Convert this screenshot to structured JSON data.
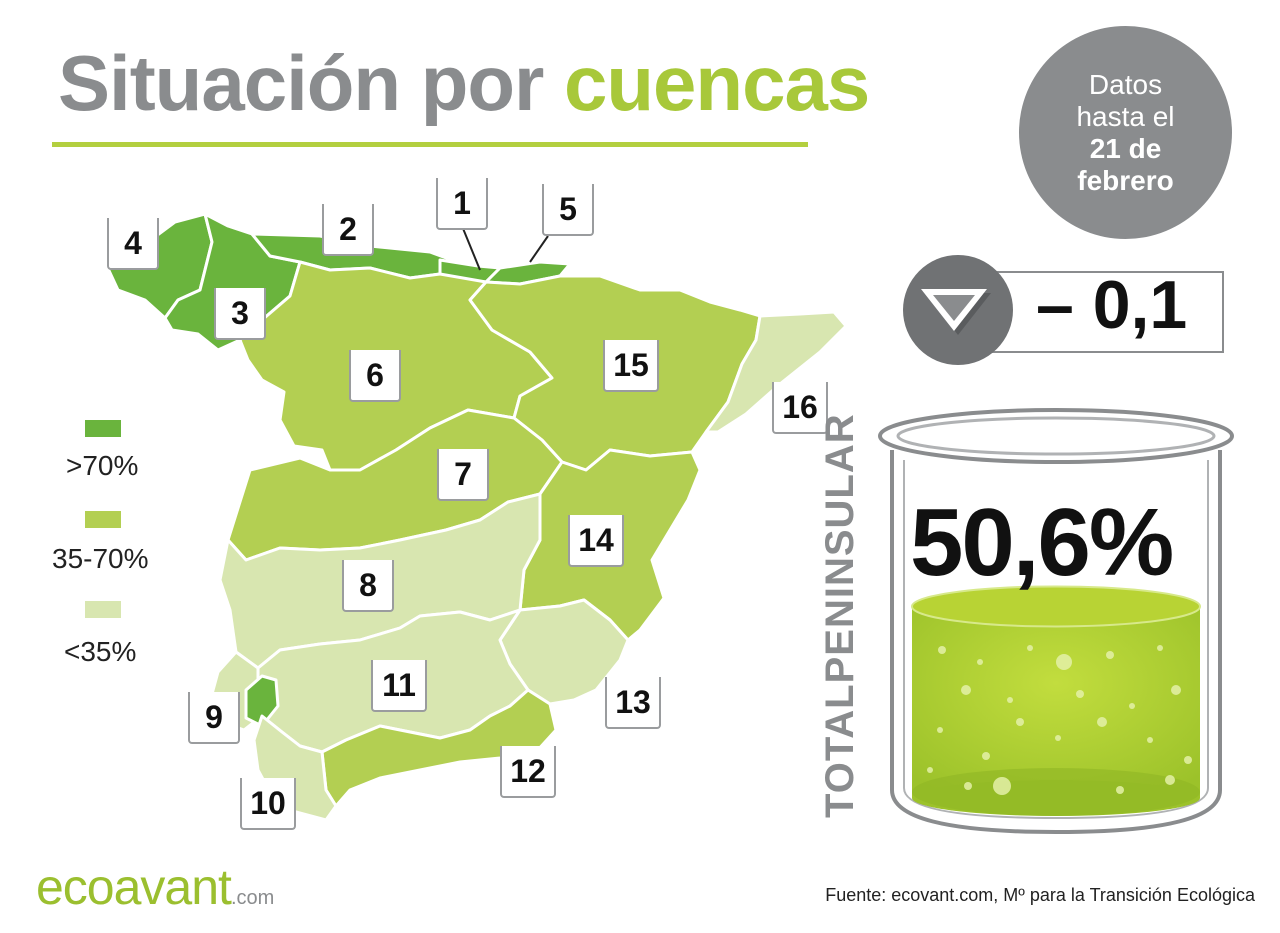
{
  "title": {
    "part1": "Situación por",
    "part2": "cuencas"
  },
  "date_badge": {
    "line1": "Datos",
    "line2": "hasta el",
    "line3": "21 de",
    "line4": "febrero"
  },
  "weekly_change": {
    "value": "– 0,1",
    "direction": "down"
  },
  "legend": [
    {
      "label": ">70%",
      "color": "#6ab43d"
    },
    {
      "label": "35-70%",
      "color": "#b3cf52"
    },
    {
      "label": "<35%",
      "color": "#d8e6b0"
    }
  ],
  "basins": [
    {
      "number": "1",
      "category": ">70%"
    },
    {
      "number": "2",
      "category": ">70%"
    },
    {
      "number": "3",
      "category": ">70%"
    },
    {
      "number": "4",
      "category": ">70%"
    },
    {
      "number": "5",
      "category": ">70%"
    },
    {
      "number": "6",
      "category": "35-70%"
    },
    {
      "number": "7",
      "category": "35-70%"
    },
    {
      "number": "8",
      "category": "<35%"
    },
    {
      "number": "9",
      "category": ">70%"
    },
    {
      "number": "10",
      "category": "<35%"
    },
    {
      "number": "11",
      "category": "<35%"
    },
    {
      "number": "12",
      "category": "35-70%"
    },
    {
      "number": "13",
      "category": "<35%"
    },
    {
      "number": "14",
      "category": "35-70%"
    },
    {
      "number": "15",
      "category": "35-70%"
    },
    {
      "number": "16",
      "category": "<35%"
    }
  ],
  "total": {
    "label": "TOTALPENINSULAR",
    "value": "50,6%",
    "fill_fraction": 0.506
  },
  "footer": {
    "logo_main": "ecoavant",
    "logo_suffix": ".com",
    "source": "Fuente: ecovant.com, Mº para la Transición Ecológica"
  },
  "colors": {
    "gray": "#8a8c8e",
    "accent": "#a8c83a",
    "high": "#6ab43d",
    "mid": "#b3cf52",
    "low": "#d8e6b0"
  }
}
